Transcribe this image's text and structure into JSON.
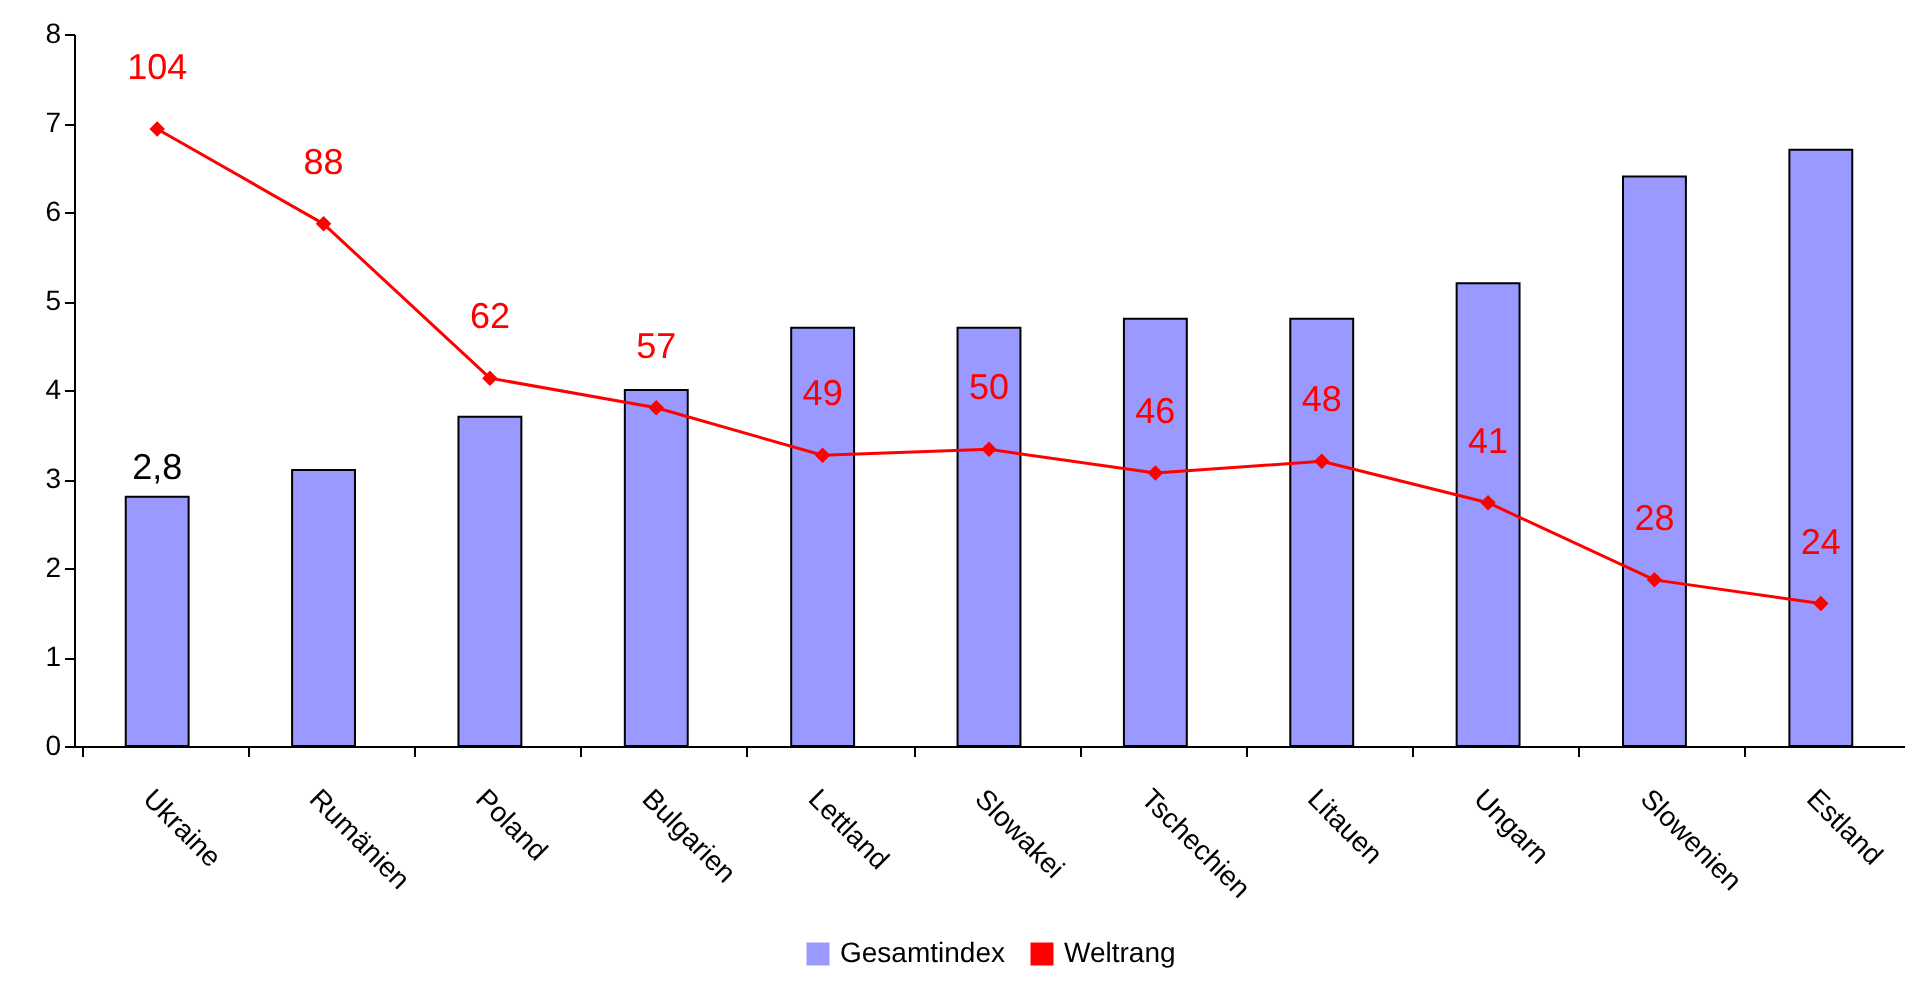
{
  "chart_data": {
    "type": "bar",
    "categories": [
      "Ukraine",
      "Rumänien",
      "Poland",
      "Bulgarien",
      "Lettland",
      "Slowakei",
      "Tschechien",
      "Litauen",
      "Ungarn",
      "Slowenien",
      "Estland"
    ],
    "series": [
      {
        "name": "Gesamtindex",
        "color": "#9999ff",
        "values": [
          2.8,
          3.1,
          3.7,
          4.0,
          4.7,
          4.7,
          4.8,
          4.8,
          5.2,
          6.4,
          6.7
        ],
        "value_labels": [
          "2,8",
          null,
          null,
          null,
          null,
          null,
          null,
          null,
          null,
          null,
          null
        ]
      },
      {
        "name": "Weltrang",
        "type": "line",
        "axis": "y2",
        "color": "#ff0000",
        "marker": "diamond",
        "values": [
          104,
          88,
          62,
          57,
          49,
          50,
          46,
          48,
          41,
          28,
          24
        ],
        "value_labels": [
          "104",
          "88",
          "62",
          "57",
          "49",
          "50",
          "46",
          "48",
          "41",
          "28",
          "24"
        ]
      }
    ],
    "ylim": [
      0,
      8
    ],
    "yticks": [
      0,
      1,
      2,
      3,
      4,
      5,
      6,
      7,
      8
    ],
    "y2lim": [
      0,
      120
    ],
    "grid": false,
    "legend": "bottom"
  }
}
